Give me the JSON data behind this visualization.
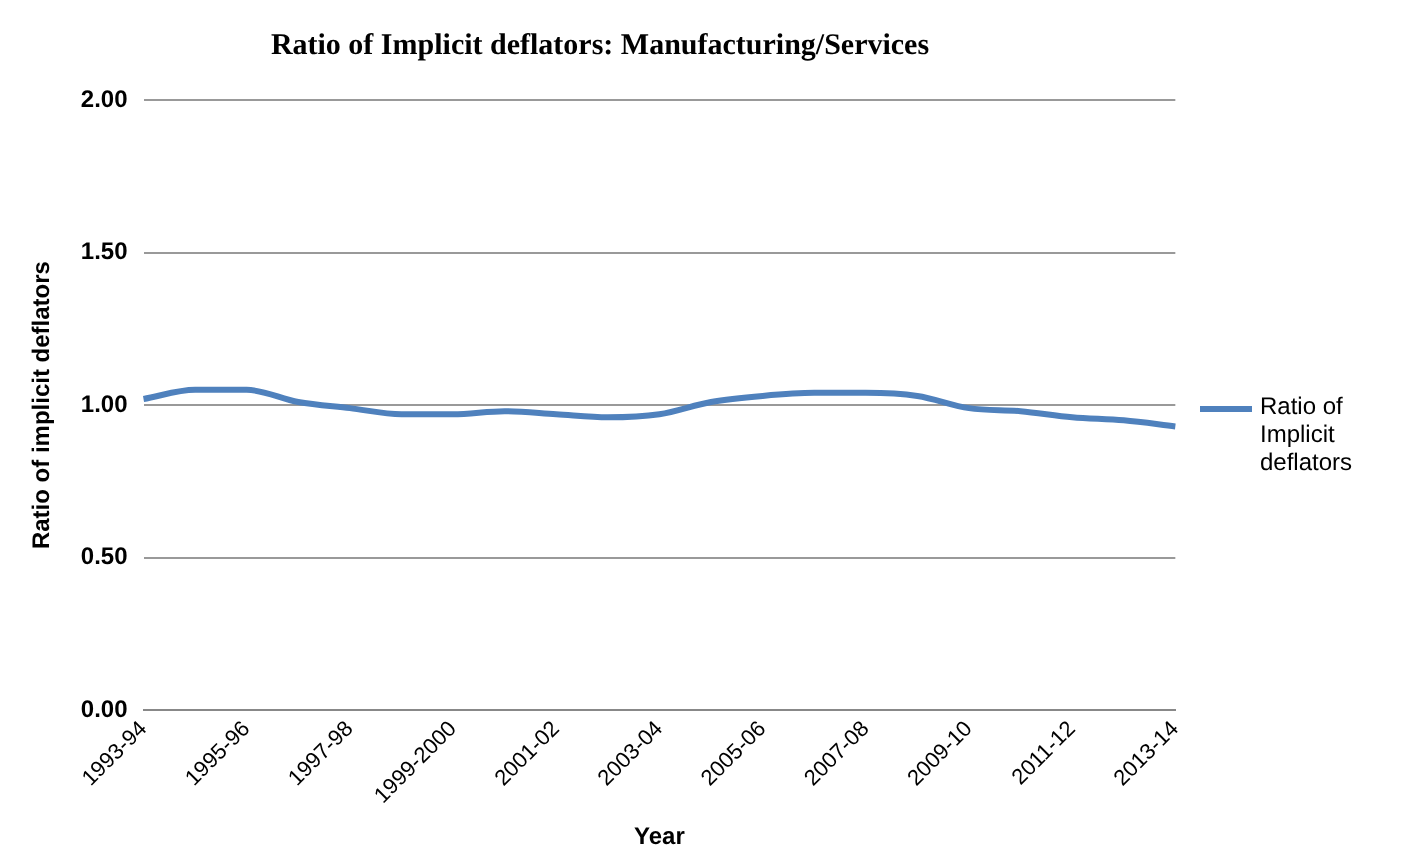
{
  "chart_data": {
    "type": "line",
    "title": "Ratio of Implicit deflators: Manufacturing/Services",
    "xlabel": "Year",
    "ylabel": "Ratio of implicit deflators",
    "categories": [
      "1993-94",
      null,
      "1995-96",
      null,
      "1997-98",
      null,
      "1999-2000",
      null,
      "2001-02",
      null,
      "2003-04",
      null,
      "2005-06",
      null,
      "2007-08",
      null,
      "2009-10",
      null,
      "2011-12",
      null,
      "2013-14"
    ],
    "series": [
      {
        "name": "Ratio of Implicit deflators",
        "color": "#4f81bd",
        "values": [
          1.02,
          1.05,
          1.05,
          1.01,
          0.99,
          0.97,
          0.97,
          0.98,
          0.97,
          0.96,
          0.97,
          1.01,
          1.03,
          1.04,
          1.04,
          1.03,
          0.99,
          0.98,
          0.96,
          0.95,
          0.93
        ]
      }
    ],
    "ylim": [
      0,
      2
    ],
    "yticks": [
      {
        "value": 0,
        "label": "0.00"
      },
      {
        "value": 0.5,
        "label": "0.50"
      },
      {
        "value": 1,
        "label": "1.00"
      },
      {
        "value": 1.5,
        "label": "1.50"
      },
      {
        "value": 2,
        "label": "2.00"
      }
    ],
    "grid": "y",
    "legend": "right",
    "marker": "none",
    "line_style": "solid"
  }
}
